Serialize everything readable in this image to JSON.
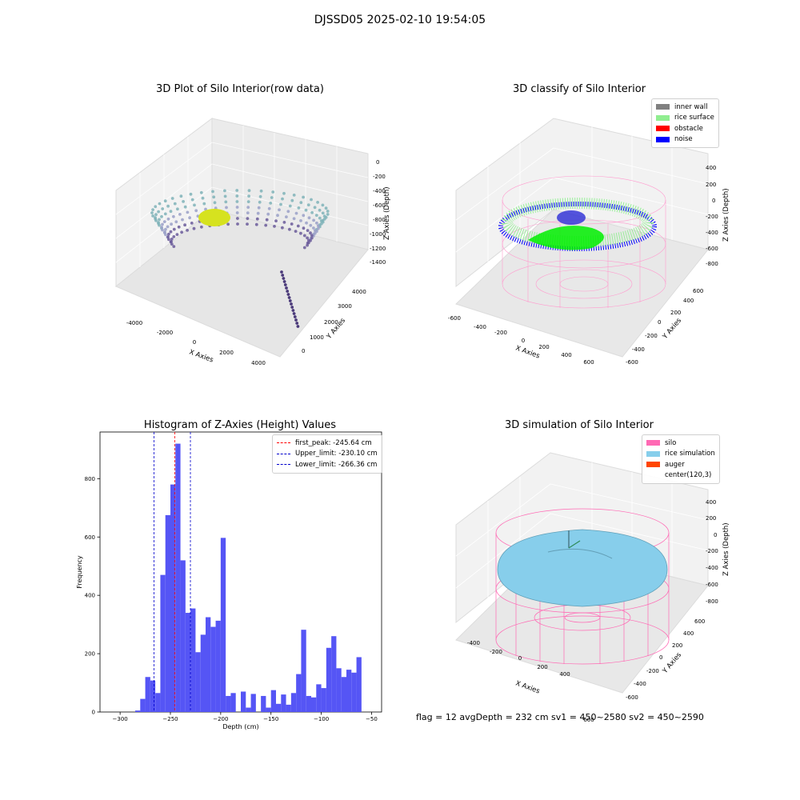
{
  "figure_title": "DJSSD05 2025-02-10 19:54:05",
  "footer_text": "flag = 12   avgDepth = 232 cm   sv1 = 450~2580   sv2 = 450~2590",
  "colors": {
    "hist_bar": "#5555f5",
    "first_peak": "#ff0000",
    "limit": "#0000cc",
    "inner_wall": "#808080",
    "rice_surface": "#90ee90",
    "obstacle": "#ff0000",
    "noise": "#0000ff",
    "silo": "#ff69b4",
    "rice_simulation": "#87ceeb",
    "auger": "#ff4500"
  },
  "chart_data": [
    {
      "type": "scatter3d",
      "title": "3D Plot of Silo Interior(row data)",
      "xlabel": "X Axies",
      "ylabel": "Y Axies",
      "zlabel": "Z Axies (Depth)",
      "x_ticks": [
        "-4000",
        "-2000",
        "0",
        "2000",
        "4000"
      ],
      "y_ticks": [
        "0",
        "1000",
        "2000",
        "3000",
        "4000"
      ],
      "z_ticks": [
        "0",
        "-200",
        "-400",
        "-600",
        "-800",
        "-1000",
        "-1200",
        "-1400"
      ],
      "xlim": [
        -4500,
        4500
      ],
      "ylim": [
        -500,
        4500
      ],
      "zlim": [
        -1500,
        0
      ],
      "description_series": "point cloud of silo wall returns colored by depth"
    },
    {
      "type": "scatter3d",
      "title": "3D classify of Silo Interior",
      "xlabel": "X Axies",
      "ylabel": "Y Axies",
      "zlabel": "Z Axies (Depth)",
      "x_ticks": [
        "-600",
        "-400",
        "-200",
        "0",
        "200",
        "400",
        "600"
      ],
      "y_ticks": [
        "-600",
        "-400",
        "-200",
        "0",
        "200",
        "400",
        "600"
      ],
      "z_ticks": [
        "400",
        "200",
        "0",
        "-200",
        "-400",
        "-600",
        "-800"
      ],
      "legend": [
        "inner wall",
        "rice surface",
        "obstacle",
        "noise"
      ]
    },
    {
      "type": "bar",
      "title": "Histogram of Z-Axies (Height) Values",
      "xlabel": "Depth (cm)",
      "ylabel": "Frequency",
      "xlim": [
        -320,
        -40
      ],
      "ylim": [
        0,
        960
      ],
      "x_ticks": [
        -300,
        -250,
        -200,
        -150,
        -100,
        -50
      ],
      "y_ticks": [
        0,
        200,
        400,
        600,
        800
      ],
      "bin_start": -285,
      "bin_width": 5,
      "values": [
        5,
        45,
        120,
        108,
        65,
        470,
        675,
        780,
        920,
        520,
        340,
        355,
        205,
        265,
        325,
        292,
        313,
        597,
        55,
        65,
        0,
        70,
        15,
        62,
        0,
        55,
        15,
        75,
        28,
        60,
        25,
        65,
        130,
        282,
        55,
        50,
        95,
        82,
        220,
        260,
        150,
        120,
        145,
        135,
        188
      ],
      "lines": [
        {
          "label": "first_peak: -245.64 cm",
          "x": -245.64,
          "color": "#ff0000"
        },
        {
          "label": "Upper_limit: -230.10 cm",
          "x": -230.1,
          "color": "#0000cc"
        },
        {
          "label": "Lower_limit: -266.36 cm",
          "x": -266.36,
          "color": "#0000cc"
        }
      ]
    },
    {
      "type": "surface3d",
      "title": "3D simulation of Silo Interior",
      "xlabel": "X Axies",
      "ylabel": "Y Axies",
      "zlabel": "Z Axies (Depth)",
      "x_ticks": [
        "-400",
        "-200",
        "0",
        "200",
        "400",
        "600"
      ],
      "y_ticks": [
        "-600",
        "-400",
        "-200",
        "0",
        "200",
        "400",
        "600"
      ],
      "z_ticks": [
        "400",
        "200",
        "0",
        "-200",
        "-400",
        "-600",
        "-800"
      ],
      "legend": [
        "silo",
        "rice simulation",
        "auger",
        "center(120,3)"
      ]
    }
  ]
}
